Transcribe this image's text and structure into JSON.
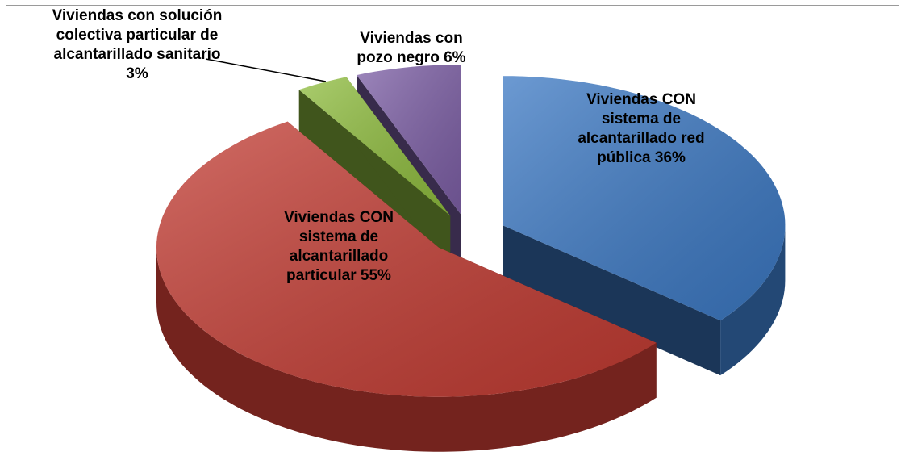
{
  "chart_data": {
    "type": "pie3d",
    "categories": [
      "Viviendas CON sistema de alcantarillado red pública",
      "Viviendas CON sistema de alcantarillado particular",
      "Viviendas con solución colectiva particular de alcantarillado sanitario",
      "Viviendas con pozo negro"
    ],
    "values": [
      36,
      55,
      3,
      6
    ],
    "value_labels": [
      "36%",
      "55%",
      "3%",
      "6%"
    ],
    "colors": [
      "#3b78c3",
      "#c23b32",
      "#8fbd3e",
      "#7d5fa6"
    ]
  }
}
